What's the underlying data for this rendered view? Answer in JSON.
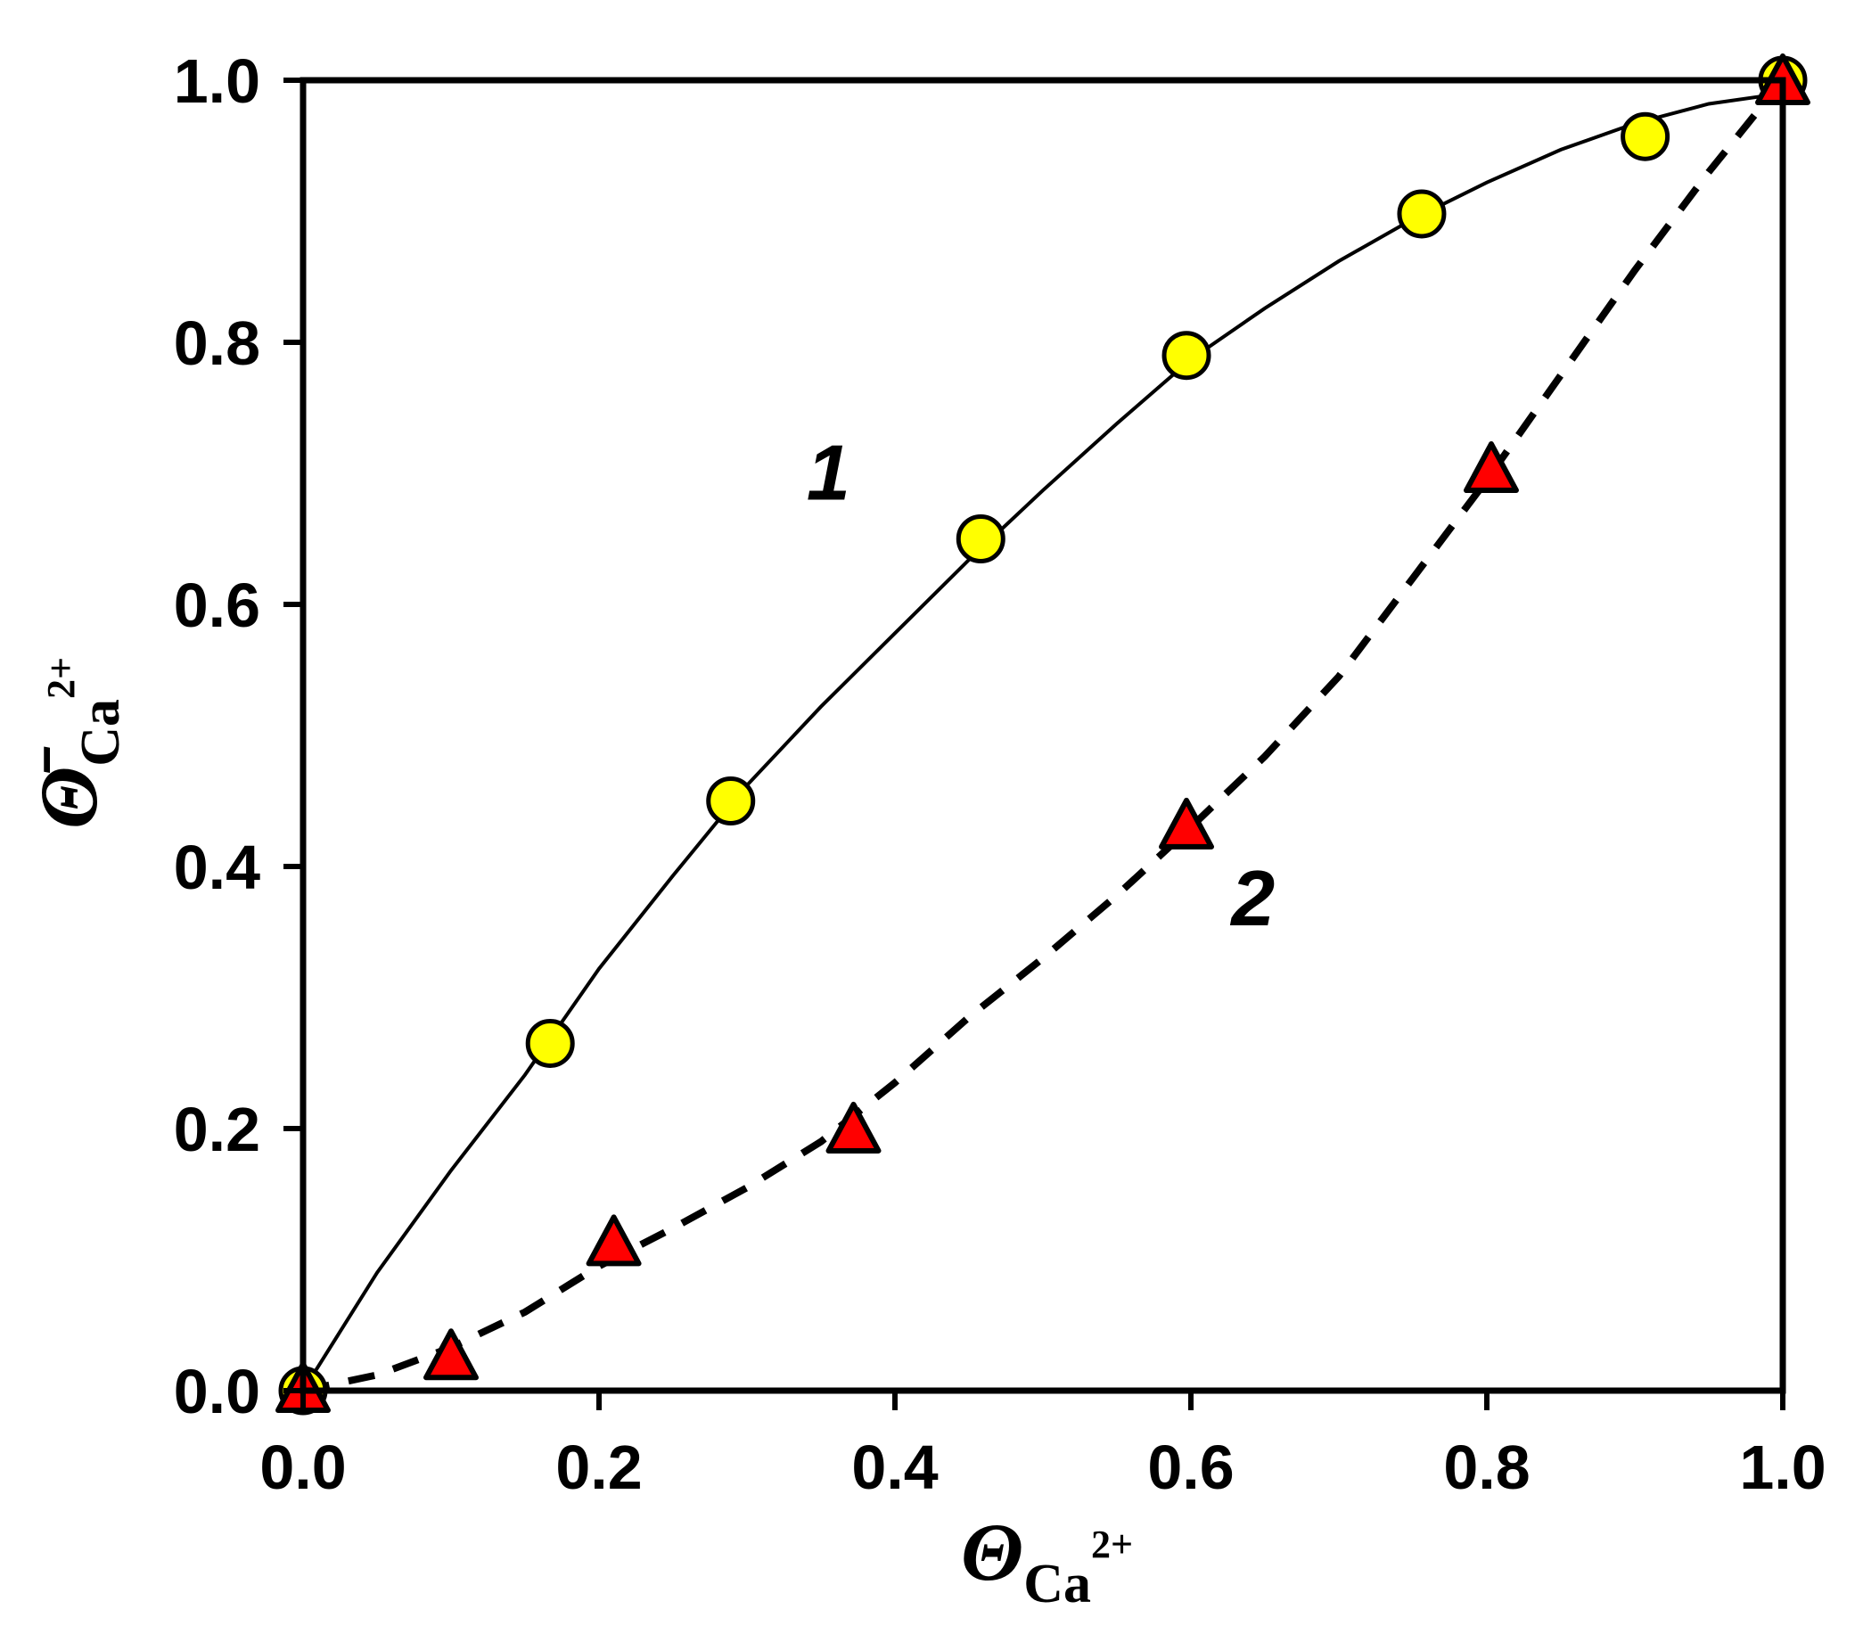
{
  "chart_data": {
    "type": "scatter",
    "xlabel": {
      "symbol": "Θ",
      "subscript": "Ca",
      "superscript": "2+"
    },
    "ylabel": {
      "symbol": "Θ̄",
      "subscript": "Ca",
      "superscript": "2+"
    },
    "xlim": [
      0,
      1
    ],
    "ylim": [
      0,
      1
    ],
    "x_ticks": [
      "0.0",
      "0.2",
      "0.4",
      "0.6",
      "0.8",
      "1.0"
    ],
    "y_ticks": [
      "0.0",
      "0.2",
      "0.4",
      "0.6",
      "0.8",
      "1.0"
    ],
    "grid": false,
    "legend": "none",
    "series": [
      {
        "name": "1",
        "marker": "circle",
        "marker_color": "#ffff00",
        "line_style": "solid",
        "points": [
          [
            0.0,
            0.0
          ],
          [
            0.167,
            0.265
          ],
          [
            0.289,
            0.45
          ],
          [
            0.458,
            0.65
          ],
          [
            0.597,
            0.79
          ],
          [
            0.756,
            0.898
          ],
          [
            0.907,
            0.957
          ],
          [
            1.0,
            1.0
          ]
        ],
        "fit": [
          [
            0.0,
            0.0
          ],
          [
            0.05,
            0.09
          ],
          [
            0.1,
            0.168
          ],
          [
            0.15,
            0.241
          ],
          [
            0.2,
            0.322
          ],
          [
            0.25,
            0.393
          ],
          [
            0.3,
            0.462
          ],
          [
            0.35,
            0.522
          ],
          [
            0.4,
            0.578
          ],
          [
            0.45,
            0.634
          ],
          [
            0.5,
            0.687
          ],
          [
            0.55,
            0.738
          ],
          [
            0.6,
            0.787
          ],
          [
            0.65,
            0.826
          ],
          [
            0.7,
            0.862
          ],
          [
            0.75,
            0.894
          ],
          [
            0.8,
            0.922
          ],
          [
            0.85,
            0.947
          ],
          [
            0.9,
            0.967
          ],
          [
            0.95,
            0.982
          ],
          [
            1.0,
            0.99
          ]
        ]
      },
      {
        "name": "2",
        "marker": "triangle",
        "marker_color": "#ff0000",
        "line_style": "dashed",
        "points": [
          [
            0.0,
            0.0
          ],
          [
            0.1,
            0.025
          ],
          [
            0.21,
            0.112
          ],
          [
            0.372,
            0.198
          ],
          [
            0.597,
            0.43
          ],
          [
            0.803,
            0.702
          ],
          [
            1.0,
            0.998
          ]
        ],
        "fit": [
          [
            0.0,
            0.0
          ],
          [
            0.05,
            0.012
          ],
          [
            0.1,
            0.033
          ],
          [
            0.15,
            0.06
          ],
          [
            0.2,
            0.095
          ],
          [
            0.25,
            0.124
          ],
          [
            0.3,
            0.155
          ],
          [
            0.35,
            0.19
          ],
          [
            0.4,
            0.235
          ],
          [
            0.45,
            0.285
          ],
          [
            0.5,
            0.33
          ],
          [
            0.55,
            0.378
          ],
          [
            0.6,
            0.43
          ],
          [
            0.65,
            0.484
          ],
          [
            0.7,
            0.545
          ],
          [
            0.75,
            0.62
          ],
          [
            0.8,
            0.695
          ],
          [
            0.85,
            0.775
          ],
          [
            0.9,
            0.855
          ],
          [
            0.95,
            0.93
          ],
          [
            1.0,
            1.0
          ]
        ]
      }
    ],
    "annotations": [
      {
        "text": "1",
        "x": 0.355,
        "y": 0.68
      },
      {
        "text": "2",
        "x": 0.642,
        "y": 0.355
      }
    ]
  }
}
